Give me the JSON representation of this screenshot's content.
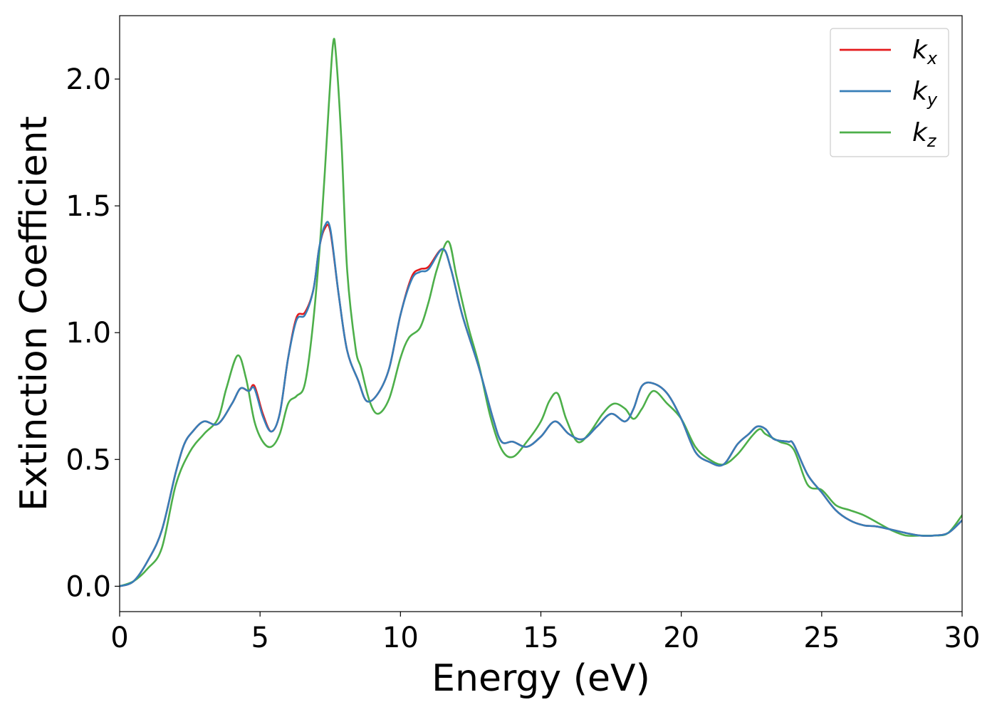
{
  "chart_data": {
    "type": "line",
    "title": "",
    "xlabel": "Energy (eV)",
    "ylabel": "Extinction Coefficient",
    "xlim": [
      0,
      30
    ],
    "ylim": [
      -0.1,
      2.25
    ],
    "xticks": [
      0,
      5,
      10,
      15,
      20,
      25,
      30
    ],
    "xtick_labels": [
      "0",
      "5",
      "10",
      "15",
      "20",
      "25",
      "30"
    ],
    "yticks": [
      0.0,
      0.5,
      1.0,
      1.5,
      2.0
    ],
    "ytick_labels": [
      "0.0",
      "0.5",
      "1.0",
      "1.5",
      "2.0"
    ],
    "grid": false,
    "legend_position": "top-right",
    "series": [
      {
        "name": "k",
        "subscript": "x",
        "color": "#e41a1c",
        "points": [
          [
            0,
            0
          ],
          [
            0.5,
            0.02
          ],
          [
            1,
            0.1
          ],
          [
            1.5,
            0.22
          ],
          [
            2,
            0.45
          ],
          [
            2.3,
            0.56
          ],
          [
            2.6,
            0.61
          ],
          [
            3,
            0.65
          ],
          [
            3.5,
            0.64
          ],
          [
            4,
            0.72
          ],
          [
            4.3,
            0.78
          ],
          [
            4.6,
            0.77
          ],
          [
            4.8,
            0.79
          ],
          [
            5.1,
            0.68
          ],
          [
            5.4,
            0.61
          ],
          [
            5.7,
            0.68
          ],
          [
            6,
            0.9
          ],
          [
            6.3,
            1.06
          ],
          [
            6.6,
            1.08
          ],
          [
            6.9,
            1.17
          ],
          [
            7.1,
            1.33
          ],
          [
            7.3,
            1.41
          ],
          [
            7.5,
            1.4
          ],
          [
            7.8,
            1.15
          ],
          [
            8.1,
            0.93
          ],
          [
            8.5,
            0.81
          ],
          [
            8.8,
            0.73
          ],
          [
            9.2,
            0.76
          ],
          [
            9.6,
            0.86
          ],
          [
            10,
            1.07
          ],
          [
            10.4,
            1.22
          ],
          [
            10.7,
            1.25
          ],
          [
            11,
            1.26
          ],
          [
            11.5,
            1.33
          ],
          [
            11.8,
            1.25
          ],
          [
            12.2,
            1.07
          ],
          [
            12.8,
            0.86
          ],
          [
            13.3,
            0.66
          ],
          [
            13.6,
            0.57
          ],
          [
            14,
            0.57
          ],
          [
            14.5,
            0.55
          ],
          [
            15,
            0.59
          ],
          [
            15.5,
            0.65
          ],
          [
            16,
            0.6
          ],
          [
            16.5,
            0.58
          ],
          [
            17,
            0.63
          ],
          [
            17.5,
            0.68
          ],
          [
            18,
            0.65
          ],
          [
            18.3,
            0.7
          ],
          [
            18.6,
            0.79
          ],
          [
            19,
            0.8
          ],
          [
            19.5,
            0.76
          ],
          [
            20,
            0.66
          ],
          [
            20.5,
            0.53
          ],
          [
            21,
            0.49
          ],
          [
            21.5,
            0.48
          ],
          [
            22,
            0.56
          ],
          [
            22.4,
            0.6
          ],
          [
            22.7,
            0.63
          ],
          [
            23,
            0.62
          ],
          [
            23.3,
            0.58
          ],
          [
            23.8,
            0.57
          ],
          [
            24,
            0.56
          ],
          [
            24.5,
            0.44
          ],
          [
            25,
            0.37
          ],
          [
            25.5,
            0.3
          ],
          [
            26,
            0.26
          ],
          [
            26.5,
            0.24
          ],
          [
            27,
            0.235
          ],
          [
            28,
            0.21
          ],
          [
            28.5,
            0.2
          ],
          [
            29,
            0.2
          ],
          [
            29.5,
            0.21
          ],
          [
            30,
            0.26
          ]
        ]
      },
      {
        "name": "k",
        "subscript": "y",
        "color": "#377eb8",
        "points": [
          [
            0,
            0
          ],
          [
            0.5,
            0.02
          ],
          [
            1,
            0.1
          ],
          [
            1.5,
            0.22
          ],
          [
            2,
            0.45
          ],
          [
            2.3,
            0.56
          ],
          [
            2.6,
            0.61
          ],
          [
            3,
            0.65
          ],
          [
            3.5,
            0.64
          ],
          [
            4,
            0.72
          ],
          [
            4.3,
            0.78
          ],
          [
            4.6,
            0.77
          ],
          [
            4.8,
            0.78
          ],
          [
            5.1,
            0.67
          ],
          [
            5.4,
            0.61
          ],
          [
            5.7,
            0.68
          ],
          [
            6,
            0.9
          ],
          [
            6.3,
            1.05
          ],
          [
            6.6,
            1.07
          ],
          [
            6.9,
            1.17
          ],
          [
            7.1,
            1.33
          ],
          [
            7.3,
            1.42
          ],
          [
            7.5,
            1.41
          ],
          [
            7.8,
            1.15
          ],
          [
            8.1,
            0.93
          ],
          [
            8.5,
            0.81
          ],
          [
            8.8,
            0.73
          ],
          [
            9.2,
            0.76
          ],
          [
            9.6,
            0.86
          ],
          [
            10,
            1.07
          ],
          [
            10.4,
            1.21
          ],
          [
            10.7,
            1.24
          ],
          [
            11,
            1.25
          ],
          [
            11.5,
            1.33
          ],
          [
            11.8,
            1.25
          ],
          [
            12.2,
            1.07
          ],
          [
            12.8,
            0.86
          ],
          [
            13.3,
            0.66
          ],
          [
            13.6,
            0.57
          ],
          [
            14,
            0.57
          ],
          [
            14.5,
            0.55
          ],
          [
            15,
            0.59
          ],
          [
            15.5,
            0.65
          ],
          [
            16,
            0.6
          ],
          [
            16.5,
            0.58
          ],
          [
            17,
            0.63
          ],
          [
            17.5,
            0.68
          ],
          [
            18,
            0.65
          ],
          [
            18.3,
            0.7
          ],
          [
            18.6,
            0.79
          ],
          [
            19,
            0.8
          ],
          [
            19.5,
            0.76
          ],
          [
            20,
            0.66
          ],
          [
            20.5,
            0.53
          ],
          [
            21,
            0.49
          ],
          [
            21.5,
            0.48
          ],
          [
            22,
            0.56
          ],
          [
            22.4,
            0.6
          ],
          [
            22.7,
            0.63
          ],
          [
            23,
            0.62
          ],
          [
            23.3,
            0.58
          ],
          [
            23.8,
            0.57
          ],
          [
            24,
            0.56
          ],
          [
            24.5,
            0.44
          ],
          [
            25,
            0.37
          ],
          [
            25.5,
            0.3
          ],
          [
            26,
            0.26
          ],
          [
            26.5,
            0.24
          ],
          [
            27,
            0.235
          ],
          [
            28,
            0.21
          ],
          [
            28.5,
            0.2
          ],
          [
            29,
            0.2
          ],
          [
            29.5,
            0.21
          ],
          [
            30,
            0.26
          ]
        ]
      },
      {
        "name": "k",
        "subscript": "z",
        "color": "#4daf4a",
        "points": [
          [
            0,
            0
          ],
          [
            0.5,
            0.02
          ],
          [
            1,
            0.07
          ],
          [
            1.5,
            0.15
          ],
          [
            2,
            0.4
          ],
          [
            2.5,
            0.53
          ],
          [
            3,
            0.6
          ],
          [
            3.5,
            0.66
          ],
          [
            3.8,
            0.78
          ],
          [
            4.2,
            0.91
          ],
          [
            4.5,
            0.82
          ],
          [
            4.8,
            0.65
          ],
          [
            5.1,
            0.57
          ],
          [
            5.4,
            0.55
          ],
          [
            5.7,
            0.6
          ],
          [
            6,
            0.72
          ],
          [
            6.3,
            0.75
          ],
          [
            6.6,
            0.8
          ],
          [
            6.9,
            1.05
          ],
          [
            7.2,
            1.45
          ],
          [
            7.45,
            1.9
          ],
          [
            7.6,
            2.14
          ],
          [
            7.7,
            2.1
          ],
          [
            7.9,
            1.75
          ],
          [
            8.1,
            1.25
          ],
          [
            8.4,
            0.94
          ],
          [
            8.6,
            0.86
          ],
          [
            8.9,
            0.73
          ],
          [
            9.2,
            0.68
          ],
          [
            9.6,
            0.74
          ],
          [
            10,
            0.9
          ],
          [
            10.3,
            0.98
          ],
          [
            10.7,
            1.02
          ],
          [
            11,
            1.12
          ],
          [
            11.3,
            1.25
          ],
          [
            11.7,
            1.36
          ],
          [
            12,
            1.22
          ],
          [
            12.4,
            1.03
          ],
          [
            12.8,
            0.87
          ],
          [
            13.2,
            0.67
          ],
          [
            13.6,
            0.54
          ],
          [
            14,
            0.51
          ],
          [
            14.5,
            0.57
          ],
          [
            15,
            0.65
          ],
          [
            15.3,
            0.73
          ],
          [
            15.6,
            0.76
          ],
          [
            15.9,
            0.66
          ],
          [
            16.3,
            0.57
          ],
          [
            16.7,
            0.6
          ],
          [
            17.2,
            0.68
          ],
          [
            17.6,
            0.72
          ],
          [
            18,
            0.7
          ],
          [
            18.3,
            0.66
          ],
          [
            18.6,
            0.7
          ],
          [
            19,
            0.77
          ],
          [
            19.5,
            0.72
          ],
          [
            20,
            0.66
          ],
          [
            20.5,
            0.55
          ],
          [
            21,
            0.5
          ],
          [
            21.5,
            0.48
          ],
          [
            22,
            0.52
          ],
          [
            22.5,
            0.59
          ],
          [
            22.8,
            0.62
          ],
          [
            23,
            0.6
          ],
          [
            23.5,
            0.57
          ],
          [
            24,
            0.54
          ],
          [
            24.5,
            0.4
          ],
          [
            25,
            0.38
          ],
          [
            25.5,
            0.32
          ],
          [
            26,
            0.3
          ],
          [
            26.5,
            0.28
          ],
          [
            27,
            0.25
          ],
          [
            27.5,
            0.22
          ],
          [
            28,
            0.2
          ],
          [
            28.5,
            0.2
          ],
          [
            29,
            0.2
          ],
          [
            29.5,
            0.21
          ],
          [
            30,
            0.28
          ]
        ]
      }
    ]
  }
}
